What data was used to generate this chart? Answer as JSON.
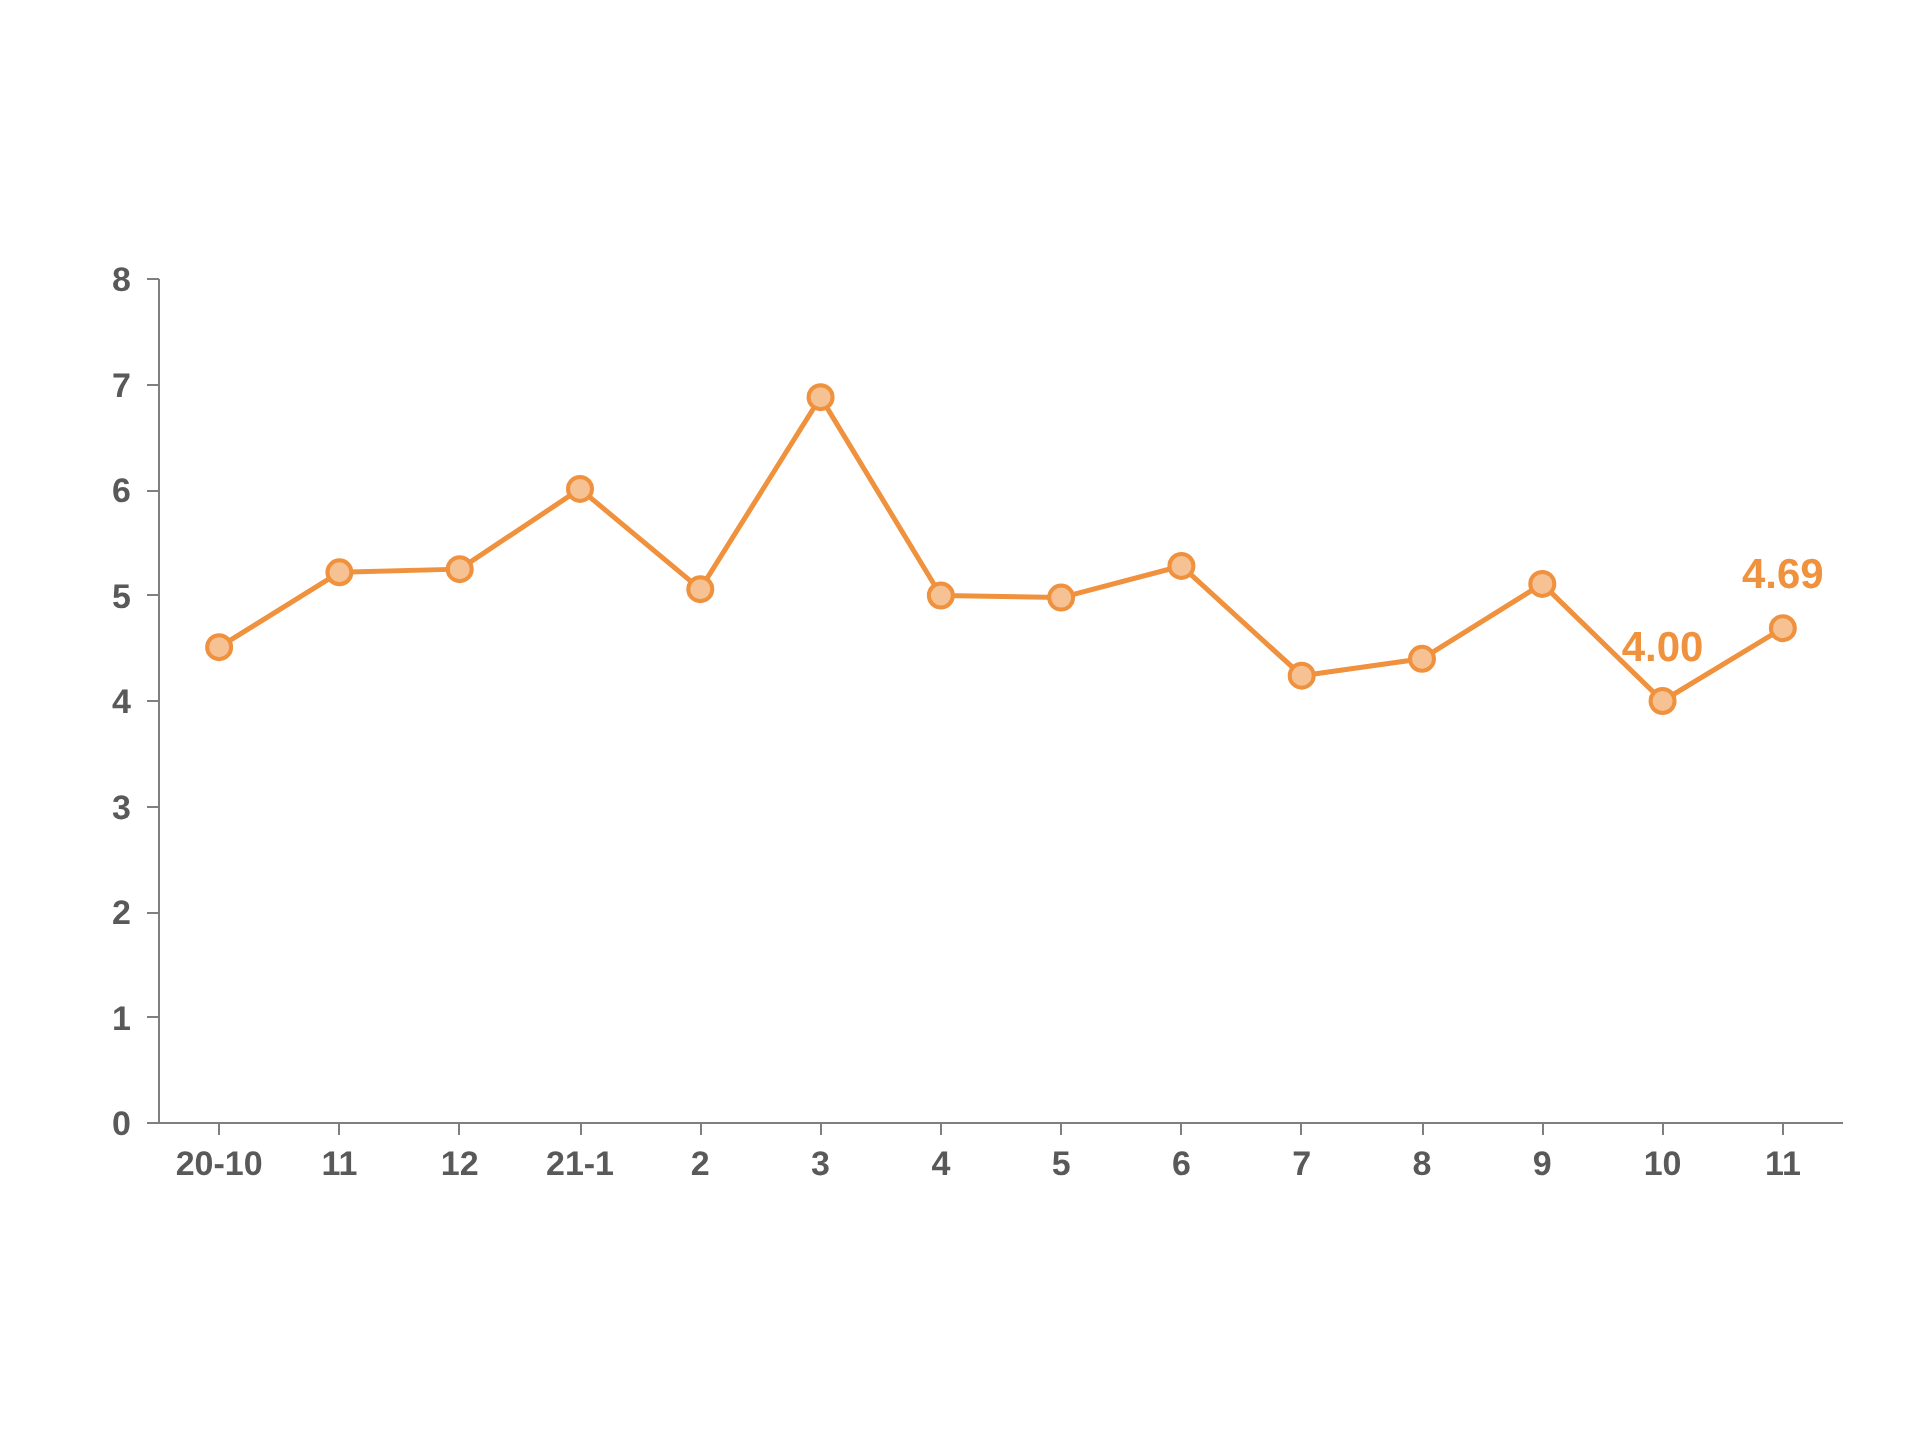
{
  "chart_data": {
    "type": "line",
    "categories": [
      "20-10",
      "11",
      "12",
      "21-1",
      "2",
      "3",
      "4",
      "5",
      "6",
      "7",
      "8",
      "9",
      "10",
      "11"
    ],
    "series": [
      {
        "color": "#f0913d",
        "values": [
          4.51,
          5.22,
          5.25,
          6.01,
          5.06,
          6.88,
          5.0,
          4.98,
          5.28,
          4.24,
          4.4,
          5.11,
          4.0,
          4.69
        ],
        "value_labels": [
          null,
          null,
          null,
          null,
          null,
          null,
          null,
          null,
          null,
          null,
          null,
          null,
          "4.00",
          "4.69"
        ]
      }
    ],
    "ylim": [
      0,
      8
    ],
    "yticks": [
      0,
      1,
      2,
      3,
      4,
      5,
      6,
      7,
      8
    ],
    "grid": false,
    "marker": "circle",
    "line_style": "solid"
  }
}
